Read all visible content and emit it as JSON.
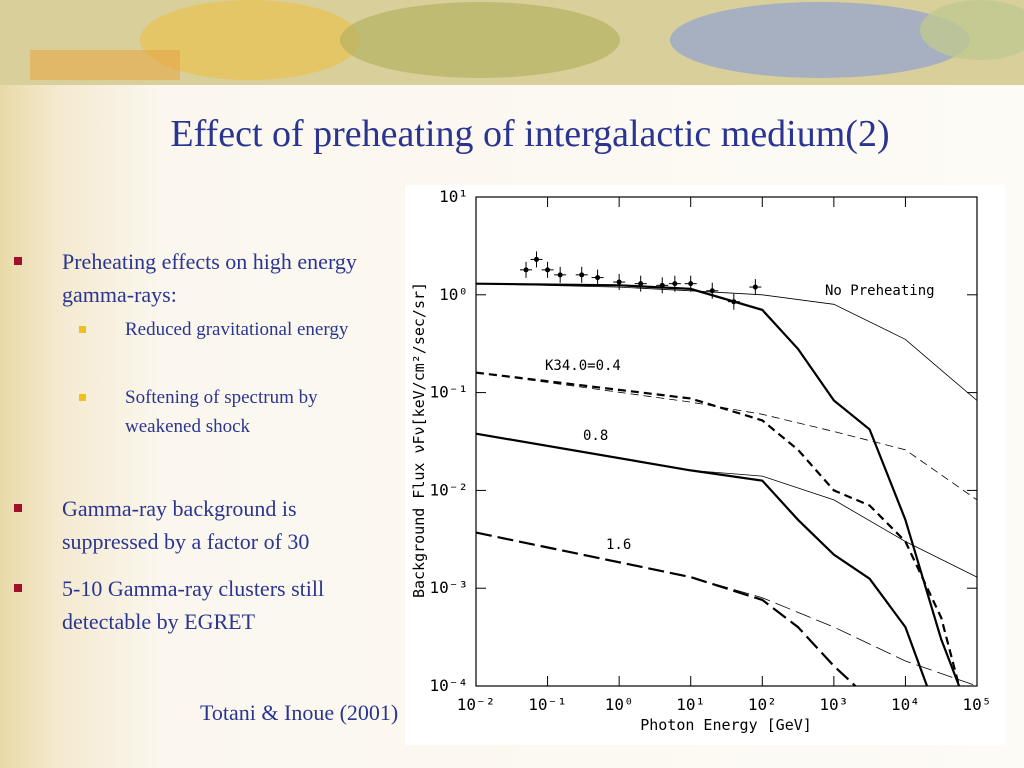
{
  "slide": {
    "title": "Effect of preheating of intergalactic medium(2)",
    "bullets": [
      {
        "text": "Preheating effects on high energy gamma-rays:",
        "sub": [
          "Reduced gravitational energy",
          "Softening of spectrum by weakened shock"
        ]
      },
      {
        "text": "Gamma-ray background is suppressed by a factor of 30"
      },
      {
        "text": "5-10 Gamma-ray clusters still detectable by EGRET"
      }
    ],
    "citation": "Totani & Inoue (2001)"
  },
  "chart_data": {
    "type": "line",
    "x_label": "Photon Energy [GeV]",
    "y_label": "Background Flux νFν[keV/cm²/sec/sr]",
    "xscale": "log",
    "yscale": "log",
    "xlim": [
      0.01,
      100000
    ],
    "ylim": [
      0.0001,
      10
    ],
    "xticks": [
      {
        "value": 0.01,
        "label": "10⁻²"
      },
      {
        "value": 0.1,
        "label": "10⁻¹"
      },
      {
        "value": 1,
        "label": "10⁰"
      },
      {
        "value": 10,
        "label": "10¹"
      },
      {
        "value": 100,
        "label": "10²"
      },
      {
        "value": 1000,
        "label": "10³"
      },
      {
        "value": 10000,
        "label": "10⁴"
      },
      {
        "value": 100000,
        "label": "10⁵"
      }
    ],
    "yticks": [
      {
        "value": 0.0001,
        "label": "10⁻⁴"
      },
      {
        "value": 0.001,
        "label": "10⁻³"
      },
      {
        "value": 0.01,
        "label": "10⁻²"
      },
      {
        "value": 0.1,
        "label": "10⁻¹"
      },
      {
        "value": 1,
        "label": "10⁰"
      },
      {
        "value": 10,
        "label": "10¹"
      }
    ],
    "series": [
      {
        "name": "No Preheating",
        "color": "#000000",
        "dash": "solid",
        "line_width": 2.2,
        "x": [
          0.01,
          1,
          10,
          100,
          316,
          1000,
          3162,
          10000,
          31623,
          56234
        ],
        "values": [
          1.3,
          1.25,
          1.15,
          0.7,
          0.28,
          0.083,
          0.042,
          0.005,
          0.0003,
          0.0001
        ]
      },
      {
        "color": "#000000",
        "dash": "solid",
        "line_width": 0.8,
        "x": [
          0.01,
          1,
          10,
          100,
          1000,
          10000,
          31623,
          100000
        ],
        "values": [
          1.3,
          1.2,
          1.1,
          1.0,
          0.8,
          0.35,
          0.17,
          0.083
        ]
      },
      {
        "name": "K34.0=0.4",
        "color": "#000000",
        "dash": "dashed",
        "line_width": 2.2,
        "x": [
          0.01,
          10,
          100,
          316,
          1000,
          3162,
          10000,
          31623,
          56234
        ],
        "values": [
          0.16,
          0.087,
          0.052,
          0.026,
          0.01,
          0.007,
          0.003,
          0.0005,
          0.0001
        ]
      },
      {
        "color": "#000000",
        "dash": "dashed",
        "line_width": 0.8,
        "x": [
          0.01,
          10,
          100,
          1000,
          10000,
          100000
        ],
        "values": [
          0.16,
          0.08,
          0.06,
          0.04,
          0.026,
          0.008
        ]
      },
      {
        "name": "0.8",
        "color": "#000000",
        "dash": "solid",
        "line_width": 2.2,
        "x": [
          0.01,
          10,
          100,
          316,
          1000,
          3162,
          10000,
          20000
        ],
        "values": [
          0.038,
          0.016,
          0.0126,
          0.005,
          0.0022,
          0.00125,
          0.0004,
          0.0001
        ]
      },
      {
        "color": "#000000",
        "dash": "solid",
        "line_width": 0.8,
        "x": [
          0.01,
          10,
          100,
          1000,
          10000,
          100000
        ],
        "values": [
          0.038,
          0.016,
          0.014,
          0.008,
          0.003,
          0.0013
        ]
      },
      {
        "name": "1.6",
        "color": "#000000",
        "dash": "longdash",
        "line_width": 2.2,
        "x": [
          0.01,
          10,
          100,
          316,
          1000,
          2000
        ],
        "values": [
          0.0037,
          0.0013,
          0.00076,
          0.0004,
          0.00016,
          0.0001
        ]
      },
      {
        "color": "#000000",
        "dash": "longdash",
        "line_width": 0.8,
        "x": [
          0.01,
          10,
          100,
          1000,
          10000,
          100000
        ],
        "values": [
          0.0037,
          0.0013,
          0.0008,
          0.0004,
          0.00018,
          0.0001
        ]
      }
    ],
    "points": {
      "x": [
        0.05,
        0.07,
        0.1,
        0.15,
        0.3,
        0.5,
        1,
        2,
        4,
        6,
        10,
        20,
        40,
        80
      ],
      "values": [
        1.8,
        2.3,
        1.8,
        1.6,
        1.6,
        1.5,
        1.35,
        1.3,
        1.25,
        1.3,
        1.3,
        1.1,
        0.85,
        1.2
      ]
    }
  }
}
